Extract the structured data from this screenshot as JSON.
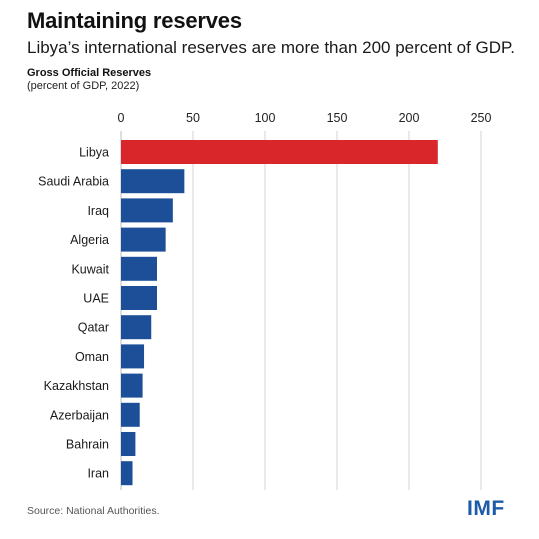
{
  "header": {
    "title": "Maintaining reserves",
    "subtitle": "Libya’s international reserves are more than 200 percent of GDP."
  },
  "chart_data": {
    "type": "bar",
    "orientation": "horizontal",
    "title": "Gross Official Reserves",
    "subtitle": "(percent of GDP, 2022)",
    "categories": [
      "Libya",
      "Saudi Arabia",
      "Iraq",
      "Algeria",
      "Kuwait",
      "UAE",
      "Qatar",
      "Oman",
      "Kazakhstan",
      "Azerbaijan",
      "Bahrain",
      "Iran"
    ],
    "values": [
      220,
      44,
      36,
      31,
      25,
      25,
      21,
      16,
      15,
      13,
      10,
      8
    ],
    "highlight_category": "Libya",
    "colors": {
      "highlight": "#d9262a",
      "default": "#1c4f98",
      "gridline": "#c8c8c8"
    },
    "xlim": [
      0,
      250
    ],
    "xticks": [
      0,
      50,
      100,
      150,
      200,
      250
    ],
    "xaxis_position": "top",
    "grid": true,
    "legend": "none"
  },
  "footer": {
    "source": "Source: National Authorities.",
    "logo_text": "IMF"
  }
}
